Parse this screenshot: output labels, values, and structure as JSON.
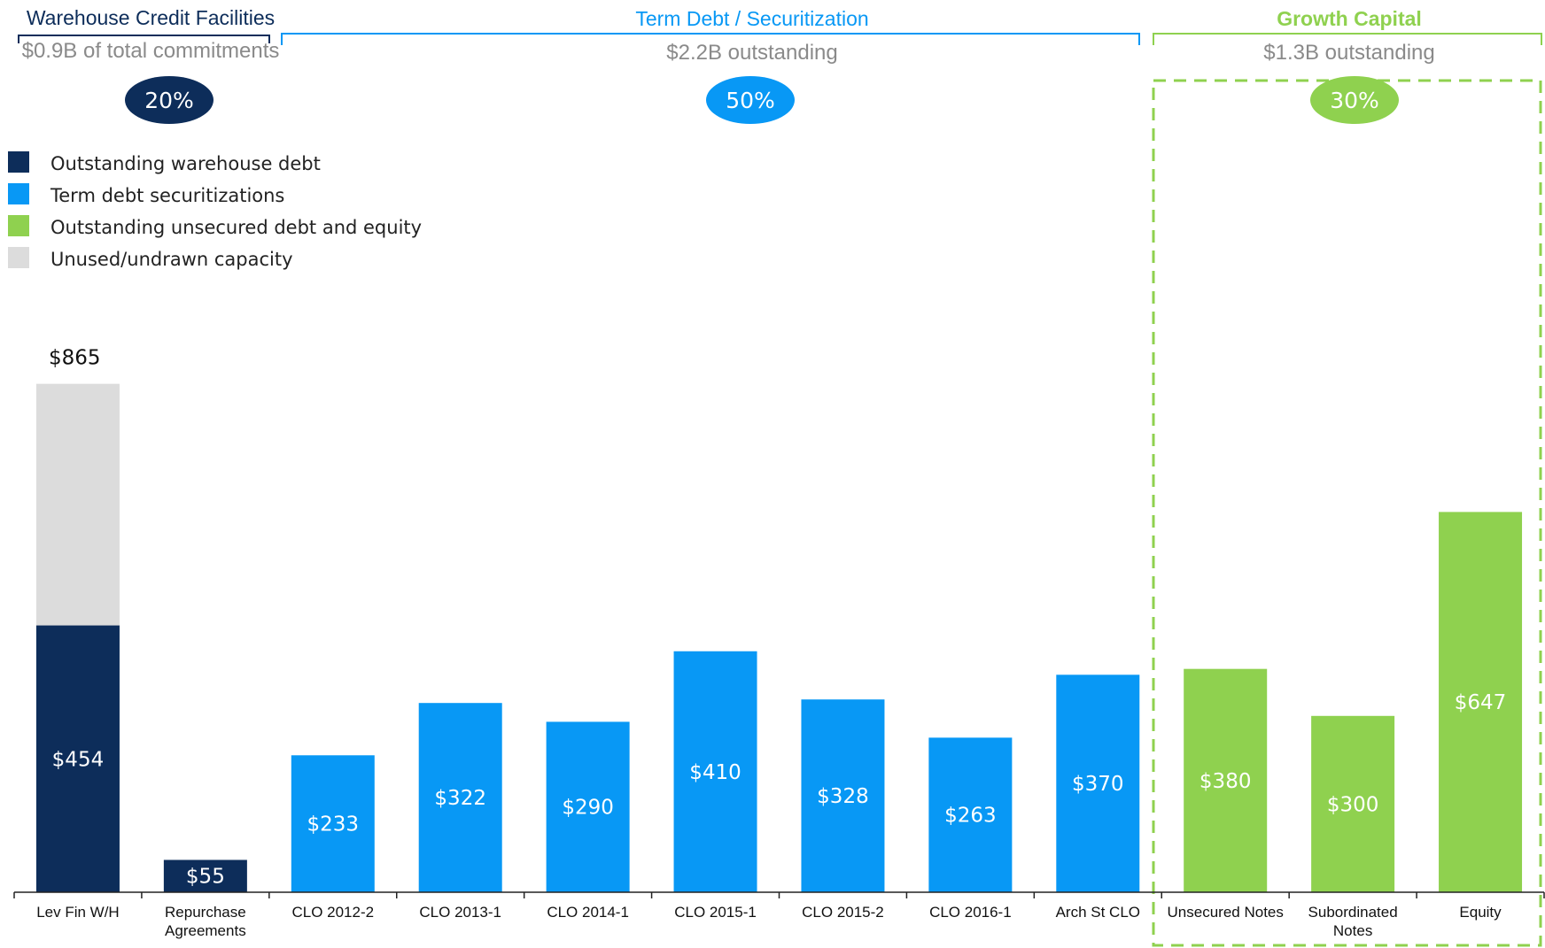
{
  "sections": [
    {
      "title": "Warehouse Credit Facilities",
      "subtitle": "$0.9B of total commitments",
      "pill": "20%",
      "color": "#0d2d5a"
    },
    {
      "title": "Term Debt / Securitization",
      "subtitle": "$2.2B outstanding",
      "pill": "50%",
      "color": "#0898f5"
    },
    {
      "title": "Growth Capital",
      "subtitle": "$1.3B outstanding",
      "pill": "30%",
      "color": "#8fd14f"
    }
  ],
  "legend": [
    {
      "label": "Outstanding warehouse debt",
      "color": "#0d2d5a"
    },
    {
      "label": "Term debt securitizations",
      "color": "#0898f5"
    },
    {
      "label": "Outstanding unsecured debt and equity",
      "color": "#8fd14f"
    },
    {
      "label": "Unused/undrawn capacity",
      "color": "#dcdcdc"
    }
  ],
  "chart_data": {
    "type": "bar",
    "stacked": true,
    "categories": [
      "Lev Fin W/H",
      "Repurchase Agreements",
      "CLO 2012-2",
      "CLO 2013-1",
      "CLO 2014-1",
      "CLO 2015-1",
      "CLO 2015-2",
      "CLO 2016-1",
      "Arch St CLO",
      "Unsecured Notes",
      "Subordinated Notes",
      "Equity"
    ],
    "values": [
      454,
      55,
      233,
      322,
      290,
      410,
      328,
      263,
      370,
      380,
      300,
      647
    ],
    "value_labels": [
      "$454",
      "$55",
      "$233",
      "$322",
      "$290",
      "$410",
      "$328",
      "$263",
      "$370",
      "$380",
      "$300",
      "$647"
    ],
    "bar_groups": [
      "warehouse",
      "warehouse",
      "term",
      "term",
      "term",
      "term",
      "term",
      "term",
      "term",
      "growth",
      "growth",
      "growth"
    ],
    "unused_capacity": [
      411,
      0,
      0,
      0,
      0,
      0,
      0,
      0,
      0,
      0,
      0,
      0
    ],
    "total_labels": [
      "$865",
      "",
      "",
      "",
      "",
      "",
      "",
      "",
      "",
      "",
      "",
      ""
    ],
    "ylim": [
      0,
      900
    ],
    "grid": false,
    "legend_position": "top-left",
    "xlabel": "",
    "ylabel": ""
  }
}
